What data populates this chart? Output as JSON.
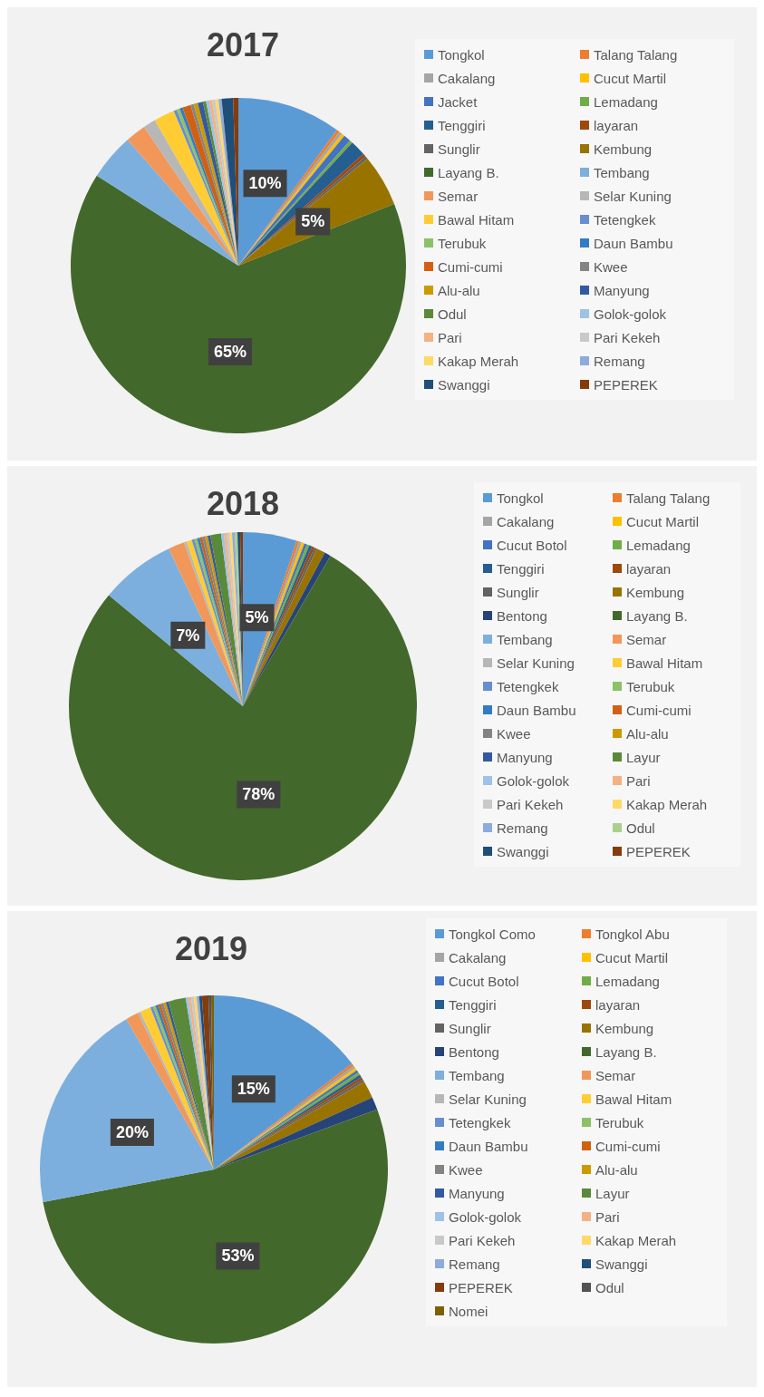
{
  "chart_data": [
    {
      "type": "pie",
      "title": "2017",
      "legend": "right",
      "categories": [
        "Tongkol",
        "Talang Talang",
        "Cakalang",
        "Cucut Martil",
        "Jacket",
        "Lemadang",
        "Tenggiri",
        "layaran",
        "Sunglir",
        "Kembung",
        "Layang B.",
        "Tembang",
        "Semar",
        "Selar Kuning",
        "Bawal Hitam",
        "Tetengkek",
        "Terubuk",
        "Daun Bambu",
        "Cumi-cumi",
        "Kwee",
        "Alu-alu",
        "Manyung",
        "Odul",
        "Golok-golok",
        "Pari",
        "Pari Kekeh",
        "Kakap Merah",
        "Remang",
        "Swanggi",
        "PEPEREK"
      ],
      "values": [
        10,
        0.3,
        0.3,
        0.3,
        0.7,
        0.3,
        1.5,
        0.3,
        0.3,
        5,
        65,
        4.5,
        2,
        1.2,
        2,
        0.3,
        0.3,
        0.3,
        0.8,
        0.3,
        0.4,
        0.5,
        0.3,
        0.3,
        0.3,
        0.3,
        0.3,
        0.3,
        1.1,
        0.5
      ],
      "colors": [
        "#5b9bd5",
        "#ed7d31",
        "#a5a5a5",
        "#ffc000",
        "#4472c4",
        "#70ad47",
        "#255e91",
        "#9e480e",
        "#636363",
        "#997300",
        "#43682b",
        "#7cafdd",
        "#f1975a",
        "#b7b7b7",
        "#ffcd33",
        "#698ed0",
        "#8cc168",
        "#327dc2",
        "#d26012",
        "#848484",
        "#cc9a00",
        "#335aa1",
        "#5a8a39",
        "#9dc3e6",
        "#f4b183",
        "#c9c9c9",
        "#ffd966",
        "#8faadc",
        "#1f4e79",
        "#843c0c"
      ],
      "value_labels": [
        "10%",
        null,
        null,
        null,
        null,
        null,
        null,
        null,
        null,
        "5%",
        "65%",
        null,
        null,
        null,
        null,
        null,
        null,
        null,
        null,
        null,
        null,
        null,
        null,
        null,
        null,
        null,
        null,
        null,
        null,
        null
      ]
    },
    {
      "type": "pie",
      "title": "2018",
      "legend": "right",
      "categories": [
        "Tongkol",
        "Talang Talang",
        "Cakalang",
        "Cucut Martil",
        "Cucut Botol",
        "Lemadang",
        "Tenggiri",
        "layaran",
        "Sunglir",
        "Kembung",
        "Bentong",
        "Layang B.",
        "Tembang",
        "Semar",
        "Selar Kuning",
        "Bawal Hitam",
        "Tetengkek",
        "Terubuk",
        "Daun Bambu",
        "Cumi-cumi",
        "Kwee",
        "Alu-alu",
        "Manyung",
        "Layur",
        "Golok-golok",
        "Pari",
        "Pari Kekeh",
        "Kakap Merah",
        "Remang",
        "Odul",
        "Swanggi",
        "PEPEREK"
      ],
      "values": [
        5,
        0.25,
        0.25,
        0.25,
        0.25,
        0.25,
        0.25,
        0.25,
        0.25,
        0.8,
        0.6,
        77.6,
        7,
        1.5,
        0.25,
        0.5,
        0.25,
        0.25,
        0.25,
        0.25,
        0.25,
        0.25,
        0.25,
        1,
        0.25,
        0.25,
        0.25,
        0.25,
        0.25,
        0.25,
        0.25,
        0.25
      ],
      "colors": [
        "#5b9bd5",
        "#ed7d31",
        "#a5a5a5",
        "#ffc000",
        "#4472c4",
        "#70ad47",
        "#255e91",
        "#9e480e",
        "#636363",
        "#997300",
        "#264478",
        "#43682b",
        "#7cafdd",
        "#f1975a",
        "#b7b7b7",
        "#ffcd33",
        "#698ed0",
        "#8cc168",
        "#327dc2",
        "#d26012",
        "#848484",
        "#cc9a00",
        "#335aa1",
        "#5a8a39",
        "#9dc3e6",
        "#f4b183",
        "#c9c9c9",
        "#ffd966",
        "#8faadc",
        "#a9d18e",
        "#1f4e79",
        "#843c0c"
      ],
      "value_labels": [
        "5%",
        null,
        null,
        null,
        null,
        null,
        null,
        null,
        null,
        null,
        null,
        "78%",
        "7%",
        null,
        null,
        null,
        null,
        null,
        null,
        null,
        null,
        null,
        null,
        null,
        null,
        null,
        null,
        null,
        null,
        null,
        null,
        null
      ]
    },
    {
      "type": "pie",
      "title": "2019",
      "legend": "right",
      "categories": [
        "Tongkol Como",
        "Tongkol Abu",
        "Cakalang",
        "Cucut Martil",
        "Cucut Botol",
        "Lemadang",
        "Tenggiri",
        "layaran",
        "Sunglir",
        "Kembung",
        "Bentong",
        "Layang B.",
        "Tembang",
        "Semar",
        "Selar Kuning",
        "Bawal Hitam",
        "Tetengkek",
        "Terubuk",
        "Daun Bambu",
        "Cumi-cumi",
        "Kwee",
        "Alu-alu",
        "Manyung",
        "Layur",
        "Golok-golok",
        "Pari",
        "Pari Kekeh",
        "Kakap Merah",
        "Remang",
        "Swanggi",
        "PEPEREK",
        "Odul",
        "Nomei"
      ],
      "values": [
        14.6,
        0.25,
        0.25,
        0.25,
        0.25,
        0.25,
        0.25,
        0.25,
        0.25,
        1.6,
        1.2,
        52.6,
        19.6,
        1.2,
        0.25,
        1,
        0.25,
        0.25,
        0.25,
        0.25,
        0.25,
        0.25,
        0.25,
        1.6,
        0.25,
        0.25,
        0.25,
        0.25,
        0.25,
        0.25,
        0.6,
        0.25,
        0.25
      ],
      "colors": [
        "#5b9bd5",
        "#ed7d31",
        "#a5a5a5",
        "#ffc000",
        "#4472c4",
        "#70ad47",
        "#255e91",
        "#9e480e",
        "#636363",
        "#997300",
        "#264478",
        "#43682b",
        "#7cafdd",
        "#f1975a",
        "#b7b7b7",
        "#ffcd33",
        "#698ed0",
        "#8cc168",
        "#327dc2",
        "#d26012",
        "#848484",
        "#cc9a00",
        "#335aa1",
        "#5a8a39",
        "#9dc3e6",
        "#f4b183",
        "#c9c9c9",
        "#ffd966",
        "#8faadc",
        "#1f4e79",
        "#843c0c",
        "#525252",
        "#7f6000"
      ],
      "value_labels": [
        "15%",
        null,
        null,
        null,
        null,
        null,
        null,
        null,
        null,
        null,
        null,
        "53%",
        "20%",
        null,
        null,
        null,
        null,
        null,
        null,
        null,
        null,
        null,
        null,
        null,
        null,
        null,
        null,
        null,
        null,
        null,
        null,
        null,
        null
      ]
    }
  ]
}
